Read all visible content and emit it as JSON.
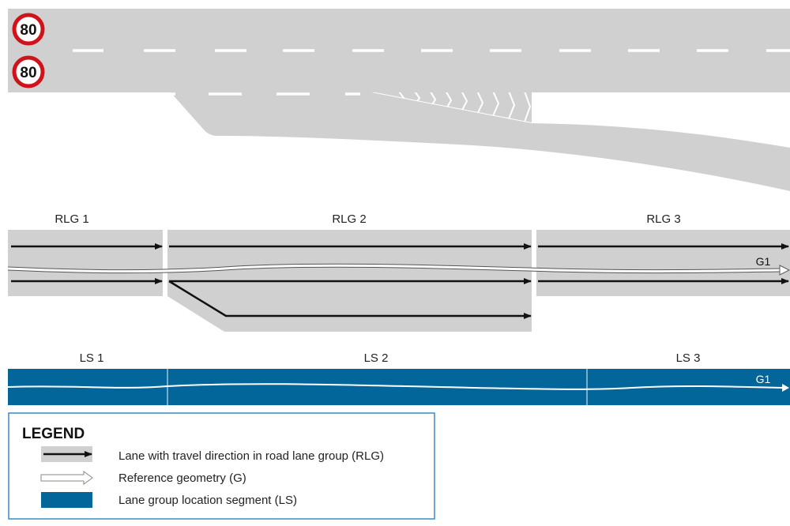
{
  "colors": {
    "road": "#d0d0d0",
    "lane_group": "#d0d0d0",
    "location_segment": "#03669a",
    "sign_ring": "#d0121b",
    "legend_border": "#3a8cc2",
    "arrow": "#111111"
  },
  "speed_signs": [
    {
      "value": "80"
    },
    {
      "value": "80"
    }
  ],
  "road_lane_groups": [
    {
      "label": "RLG 1"
    },
    {
      "label": "RLG 2"
    },
    {
      "label": "RLG 3"
    }
  ],
  "rlg_reference_label": "G1",
  "location_segments": [
    {
      "label": "LS 1"
    },
    {
      "label": "LS 2"
    },
    {
      "label": "LS 3"
    }
  ],
  "ls_reference_label": "G1",
  "legend": {
    "title": "LEGEND",
    "items": [
      {
        "icon": "lane-arrow-swatch",
        "text": "Lane with travel direction in road lane group (RLG)"
      },
      {
        "icon": "reference-geometry-arrow",
        "text": "Reference geometry (G)"
      },
      {
        "icon": "location-segment-swatch",
        "text": "Lane group location segment (LS)"
      }
    ]
  }
}
